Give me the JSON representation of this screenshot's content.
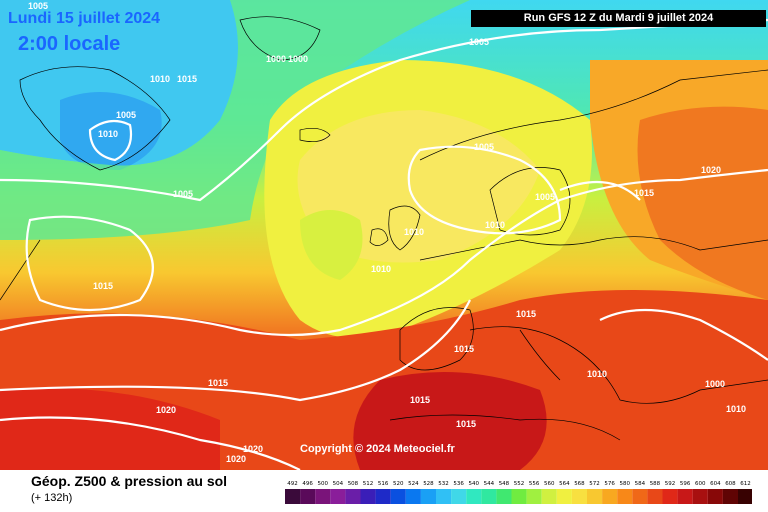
{
  "header": {
    "date": "Lundi 15 juillet 2024",
    "local_time": "2:00 locale",
    "run": "Run GFS 12 Z du Mardi 9 juillet 2024"
  },
  "copyright": "Copyright © 2024 Meteociel.fr",
  "footer": {
    "title": "Géop. Z500 & pression au sol",
    "subtitle": "(+ 132h)"
  },
  "isobar_labels": [
    "1005",
    "1005",
    "1005",
    "1005",
    "1005",
    "1005",
    "1010",
    "1010",
    "1010",
    "1010",
    "1010",
    "1010",
    "1010",
    "1015",
    "1015",
    "1015",
    "1015",
    "1015",
    "1015",
    "1015",
    "1015",
    "1020",
    "1020",
    "1020",
    "1020",
    "1000",
    "1000",
    "1000"
  ],
  "scale": {
    "ticks": [
      "492",
      "496",
      "500",
      "504",
      "508",
      "512",
      "516",
      "520",
      "524",
      "528",
      "532",
      "536",
      "540",
      "544",
      "548",
      "552",
      "556",
      "560",
      "564",
      "568",
      "572",
      "576",
      "580",
      "584",
      "588",
      "592",
      "596",
      "600",
      "604",
      "608",
      "612"
    ],
    "colors": [
      "#3a0a3a",
      "#5a0a5a",
      "#7a147a",
      "#8a1e9a",
      "#6a1ea8",
      "#3a1eb8",
      "#1e2ac8",
      "#0a50e0",
      "#0a78f0",
      "#1aa0f5",
      "#30c0f5",
      "#40d8e8",
      "#30e8c0",
      "#30e8a0",
      "#40e870",
      "#70ec40",
      "#a0f040",
      "#d0f040",
      "#f0f040",
      "#f8e040",
      "#f8c830",
      "#f8a820",
      "#f88818",
      "#f06818",
      "#e84818",
      "#e02818",
      "#c81818",
      "#a81010",
      "#880808",
      "#600404",
      "#380202"
    ]
  }
}
